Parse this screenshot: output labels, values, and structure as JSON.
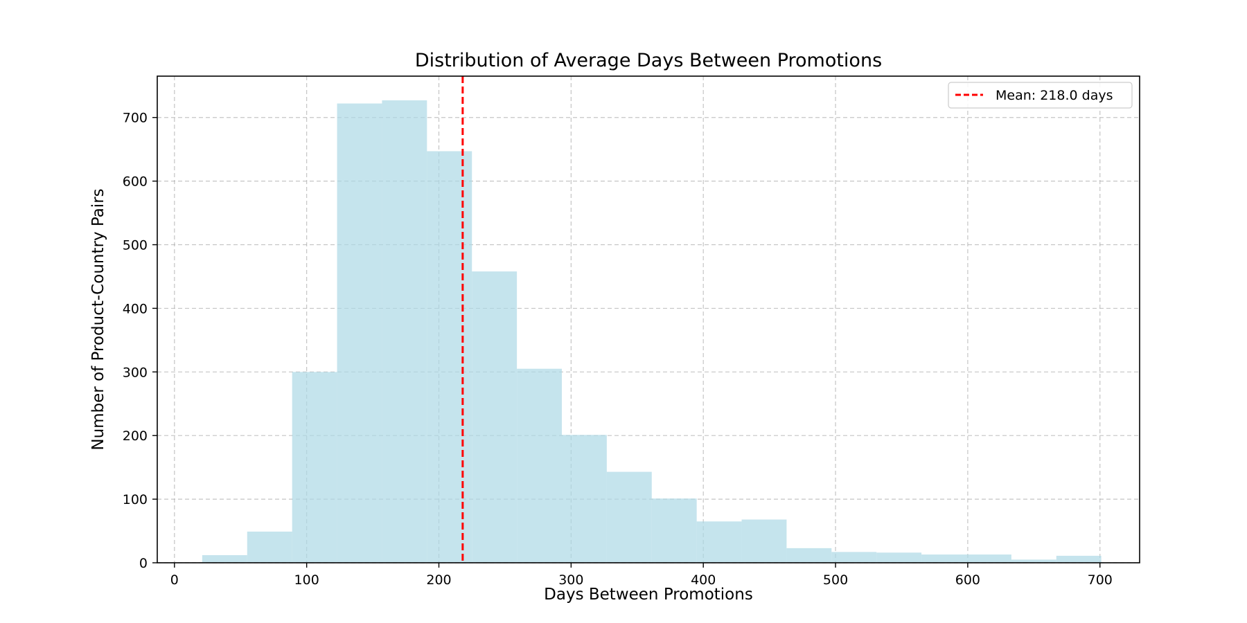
{
  "chart_data": {
    "type": "bar",
    "title": "Distribution of Average Days Between Promotions",
    "xlabel": "Days Between Promotions",
    "ylabel": "Number of Product-Country Pairs",
    "xlim": [
      -13,
      730
    ],
    "ylim": [
      0,
      765
    ],
    "xticks": [
      0,
      100,
      200,
      300,
      400,
      500,
      600,
      700
    ],
    "yticks": [
      0,
      100,
      200,
      300,
      400,
      500,
      600,
      700
    ],
    "grid": true,
    "grid_style": "dashed",
    "bar_color": "#add8e6",
    "bins": [
      {
        "start": 21,
        "end": 55,
        "count": 12
      },
      {
        "start": 55,
        "end": 89,
        "count": 49
      },
      {
        "start": 89,
        "end": 123,
        "count": 300
      },
      {
        "start": 123,
        "end": 157,
        "count": 722
      },
      {
        "start": 157,
        "end": 191,
        "count": 727
      },
      {
        "start": 191,
        "end": 225,
        "count": 647
      },
      {
        "start": 225,
        "end": 259,
        "count": 458
      },
      {
        "start": 259,
        "end": 293,
        "count": 305
      },
      {
        "start": 293,
        "end": 327,
        "count": 201
      },
      {
        "start": 327,
        "end": 361,
        "count": 143
      },
      {
        "start": 361,
        "end": 395,
        "count": 101
      },
      {
        "start": 395,
        "end": 429,
        "count": 65
      },
      {
        "start": 429,
        "end": 463,
        "count": 68
      },
      {
        "start": 463,
        "end": 497,
        "count": 23
      },
      {
        "start": 497,
        "end": 531,
        "count": 17
      },
      {
        "start": 531,
        "end": 565,
        "count": 16
      },
      {
        "start": 565,
        "end": 599,
        "count": 13
      },
      {
        "start": 599,
        "end": 633,
        "count": 13
      },
      {
        "start": 633,
        "end": 667,
        "count": 5
      },
      {
        "start": 667,
        "end": 701,
        "count": 11
      }
    ],
    "mean_line": {
      "value": 218.0,
      "color": "#ff0000",
      "style": "dashed",
      "label": "Mean: 218.0 days"
    },
    "legend_position": "top-right"
  }
}
